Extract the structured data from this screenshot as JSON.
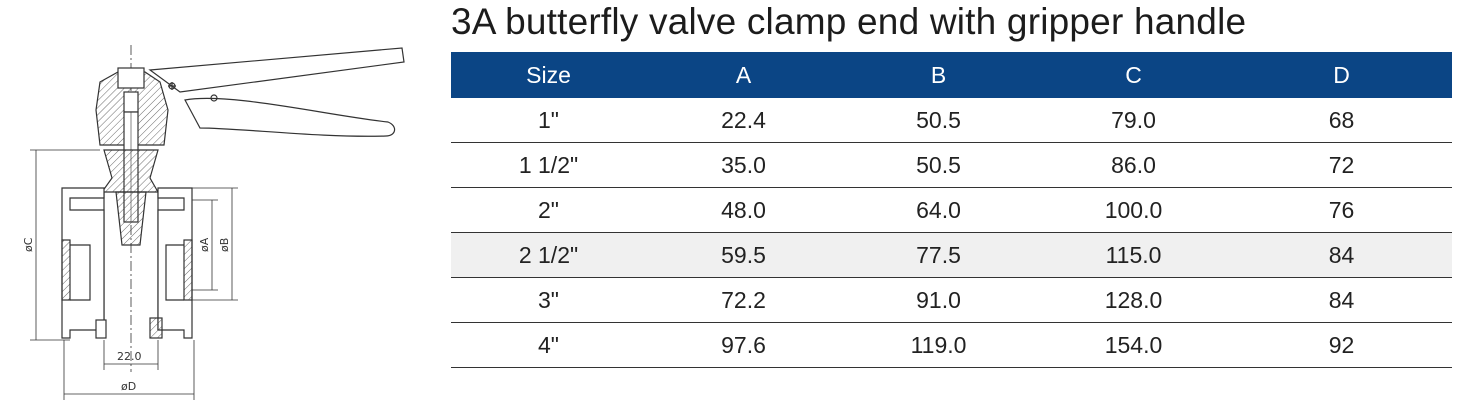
{
  "title": "3A butterfly valve clamp end with gripper handle",
  "drawing": {
    "dim_c": "øC",
    "dim_a": "øA",
    "dim_b": "øB",
    "dim_d": "øD",
    "dim_width": "22.0"
  },
  "table": {
    "headers": [
      "Size",
      "A",
      "B",
      "C",
      "D"
    ],
    "rows": [
      [
        "1\"",
        "22.4",
        "50.5",
        "79.0",
        "68"
      ],
      [
        "1 1/2\"",
        "35.0",
        "50.5",
        "86.0",
        "72"
      ],
      [
        "2\"",
        "48.0",
        "64.0",
        "100.0",
        "76"
      ],
      [
        "2 1/2\"",
        "59.5",
        "77.5",
        "115.0",
        "84"
      ],
      [
        "3\"",
        "72.2",
        "91.0",
        "128.0",
        "84"
      ],
      [
        "4\"",
        "97.6",
        "119.0",
        "154.0",
        "92"
      ]
    ]
  }
}
